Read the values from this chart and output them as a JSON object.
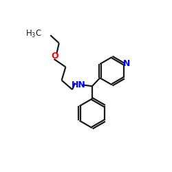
{
  "background_color": "#ffffff",
  "bond_color": "#1a1a1a",
  "nitrogen_color": "#0000ff",
  "oxygen_color": "#ff0000",
  "line_width": 1.6,
  "figsize": [
    2.5,
    2.5
  ],
  "dpi": 100,
  "xlim": [
    0,
    10
  ],
  "ylim": [
    0,
    10
  ]
}
